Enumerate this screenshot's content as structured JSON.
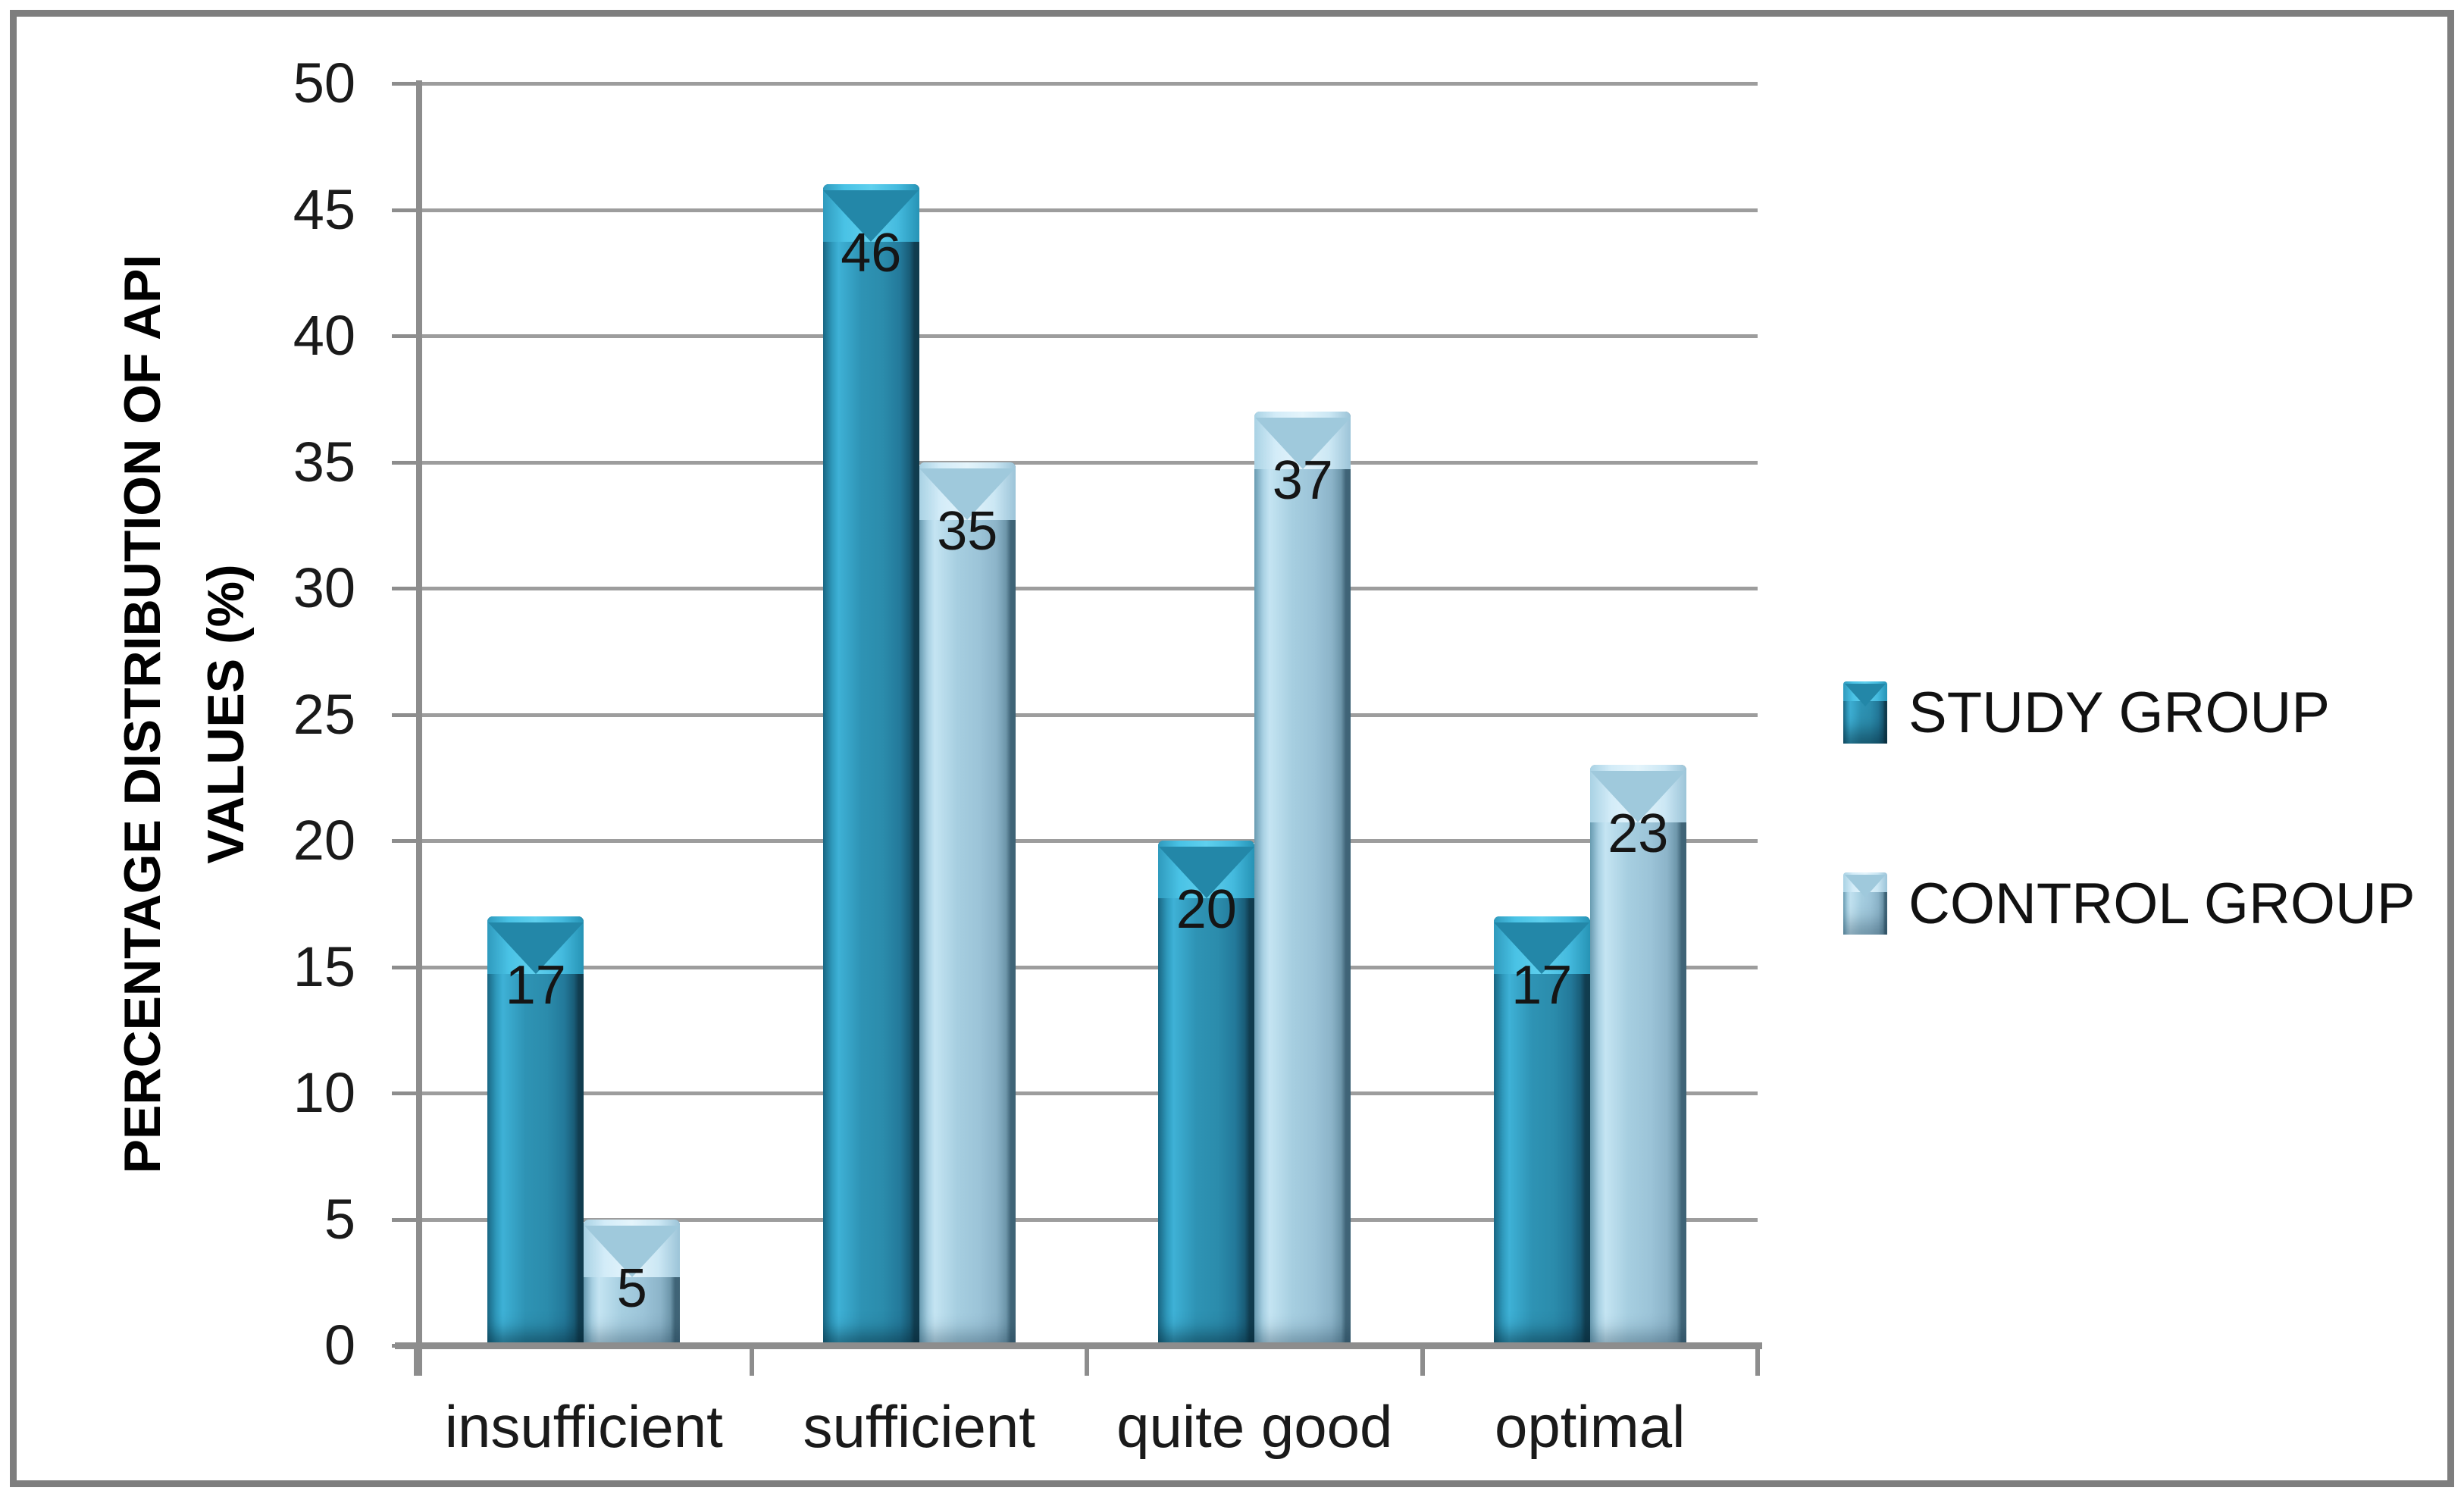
{
  "chart_data": {
    "type": "bar",
    "title": "",
    "categories": [
      "insufficient",
      "sufficient",
      "quite good",
      "optimal"
    ],
    "series": [
      {
        "name": "STUDY GROUP",
        "values": [
          17,
          46,
          20,
          17
        ],
        "color": "#2E93B4"
      },
      {
        "name": "CONTROL GROUP",
        "values": [
          5,
          35,
          37,
          23
        ],
        "color": "#A6CEE0"
      }
    ],
    "ylabel_lines": [
      "PERCENTAGE DISTRIBUTION OF API",
      "VALUES (%)"
    ],
    "xlabel": "",
    "ylim": [
      0,
      50
    ],
    "yticks": [
      0,
      5,
      10,
      15,
      20,
      25,
      30,
      35,
      40,
      45,
      50
    ],
    "grid": "horizontal",
    "legend_position": "right",
    "data_labels": true
  },
  "colors": {
    "study_bar": "#2E93B4",
    "study_bar_dark_edge": "#123F52",
    "study_bar_highlight": "#5FD0EE",
    "control_bar": "#A6CEE0",
    "control_bar_dark_edge": "#42677A",
    "control_bar_highlight": "#E4F4FB",
    "gridline": "#9D9D9D",
    "axis": "#8D8D8D",
    "frame_border": "#7E7E7E",
    "text": "#1A1A1A",
    "background": "#FFFFFF"
  }
}
